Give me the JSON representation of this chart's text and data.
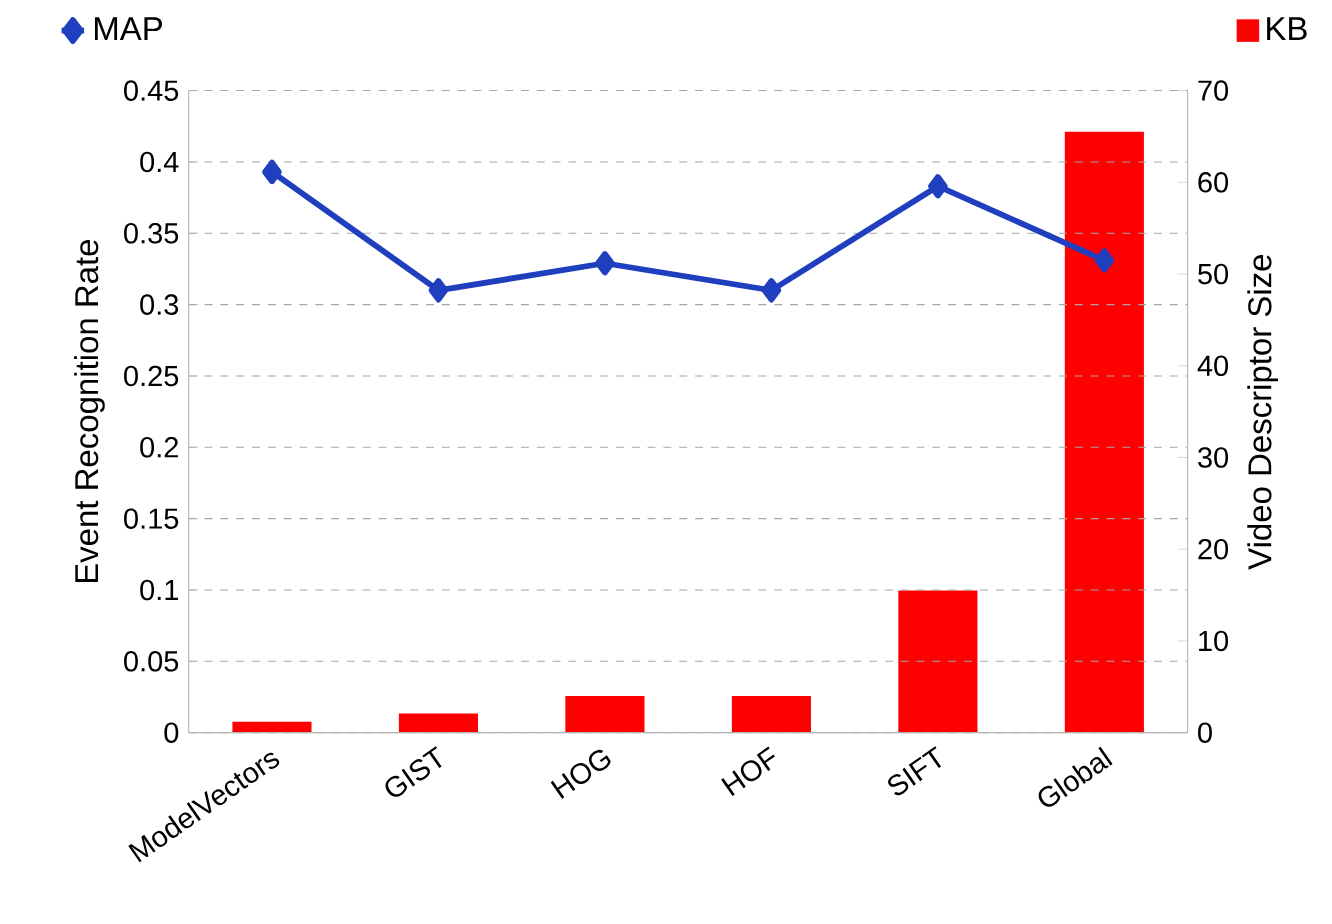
{
  "chart_data": {
    "type": "bar",
    "xlabel": null,
    "ylabel": "Event Recognition Rate",
    "y2label": "Video Descriptor Size",
    "categories": [
      "ModelVectors",
      "GIST",
      "HOG",
      "HOF",
      "SIFT",
      "Global"
    ],
    "series": [
      {
        "name": "MAP",
        "type": "line",
        "color": "#1f3fbf",
        "marker": "diamond",
        "line_style": "solid",
        "values": [
          0.393,
          0.31,
          0.329,
          0.31,
          0.383,
          0.331
        ]
      },
      {
        "name": "KB",
        "axis": "y2",
        "color": "#ff0000",
        "values": [
          1.2,
          2.1,
          4.0,
          4.0,
          15.5,
          65.5
        ]
      }
    ],
    "ylim": [
      0,
      0.45
    ],
    "yticks": [
      0,
      0.05,
      0.1,
      0.15,
      0.2,
      0.25,
      0.3,
      0.35,
      0.4,
      0.45
    ],
    "y2lim": [
      0,
      70
    ],
    "y2ticks": [
      0,
      10,
      20,
      30,
      40,
      50,
      60,
      70
    ],
    "grid": "y",
    "legend": "top"
  }
}
